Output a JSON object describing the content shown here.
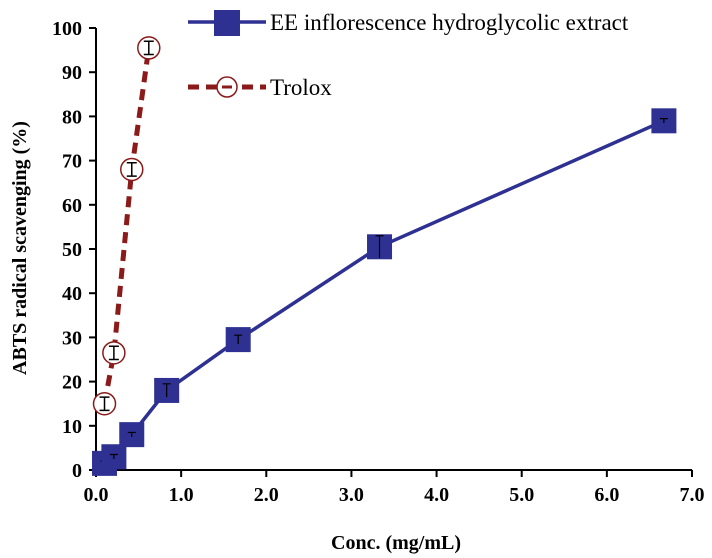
{
  "chart_data": {
    "type": "line",
    "title": "",
    "xlabel": "Conc. (mg/mL)",
    "ylabel": "ABTS radical scavenging (%)",
    "xlim": [
      0,
      7
    ],
    "ylim": [
      0,
      100
    ],
    "xticks": [
      "0.0",
      "1.0",
      "2.0",
      "3.0",
      "4.0",
      "5.0",
      "6.0",
      "7.0"
    ],
    "yticks": [
      "0",
      "10",
      "20",
      "30",
      "40",
      "50",
      "60",
      "70",
      "80",
      "90",
      "100"
    ],
    "grid": false,
    "legend_position": "top",
    "series": [
      {
        "name": "EE inflorescence hydroglycolic extract",
        "color": "#2e3192",
        "marker": "square",
        "line": "solid",
        "x": [
          0.1,
          0.21,
          0.42,
          0.83,
          1.67,
          3.33,
          6.67
        ],
        "y": [
          1.5,
          3,
          8,
          18,
          29.5,
          50.5,
          79
        ],
        "error": [
          0.5,
          0.5,
          0.5,
          1.5,
          1,
          2.5,
          0.5
        ]
      },
      {
        "name": "Trolox",
        "color": "#8b1a1a",
        "marker": "circle",
        "line": "dashed",
        "x": [
          0.1,
          0.21,
          0.42,
          0.62
        ],
        "y": [
          15,
          26.5,
          68,
          95.5
        ],
        "error": [
          1.5,
          1.5,
          1.5,
          1.5
        ]
      }
    ]
  }
}
